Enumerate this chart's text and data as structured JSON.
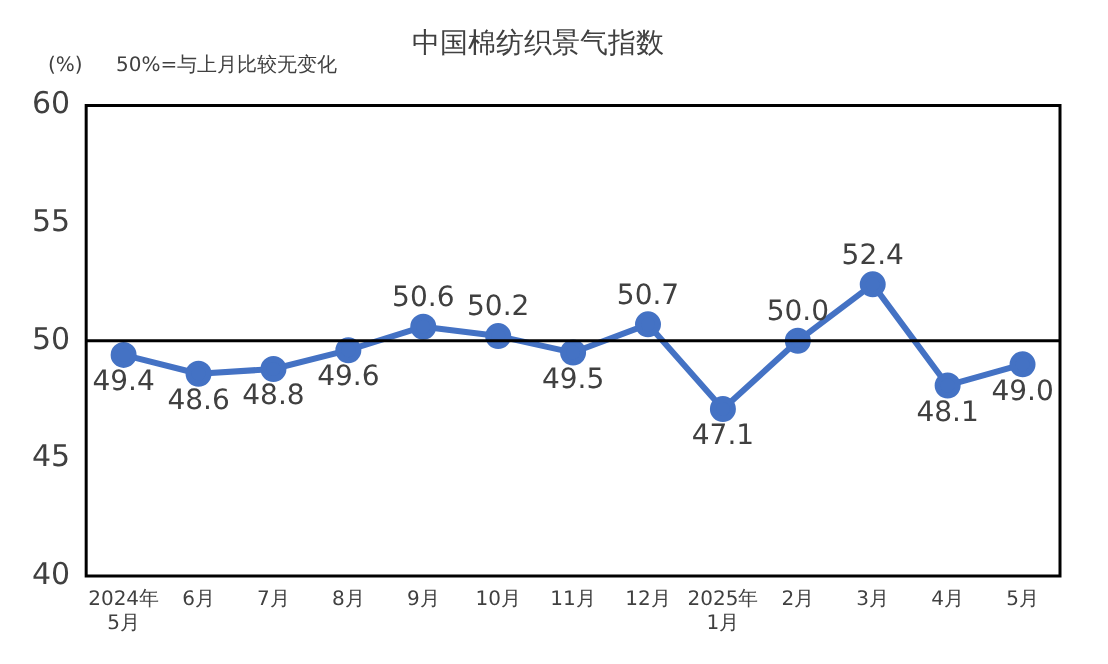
{
  "chart_data": {
    "type": "line",
    "title": "中国棉纺织景气指数",
    "ylabel": "(%)",
    "annotations": [
      "50%=与上月比较无变化"
    ],
    "categories": [
      "2024年\n5月",
      "6月",
      "7月",
      "8月",
      "9月",
      "10月",
      "11月",
      "12月",
      "2025年\n1月",
      "2月",
      "3月",
      "4月",
      "5月"
    ],
    "series": [
      {
        "color": "#4472c4",
        "values": [
          49.4,
          48.6,
          48.8,
          49.6,
          50.6,
          50.2,
          49.5,
          50.7,
          47.1,
          50.0,
          52.4,
          48.1,
          49.0
        ],
        "value_labels": [
          "49.4",
          "48.6",
          "48.8",
          "49.6",
          "50.6",
          "50.2",
          "49.5",
          "50.7",
          "47.1",
          "50.0",
          "52.4",
          "48.1",
          "49.0"
        ]
      }
    ],
    "ylim": [
      40,
      60
    ],
    "yticks": [
      40,
      45,
      50,
      55,
      60
    ],
    "grid": false,
    "legend": false,
    "marker": "circle",
    "line_style": "solid",
    "ref_lines": [
      {
        "axis": "y",
        "value": 50,
        "color": "#000000"
      }
    ]
  }
}
